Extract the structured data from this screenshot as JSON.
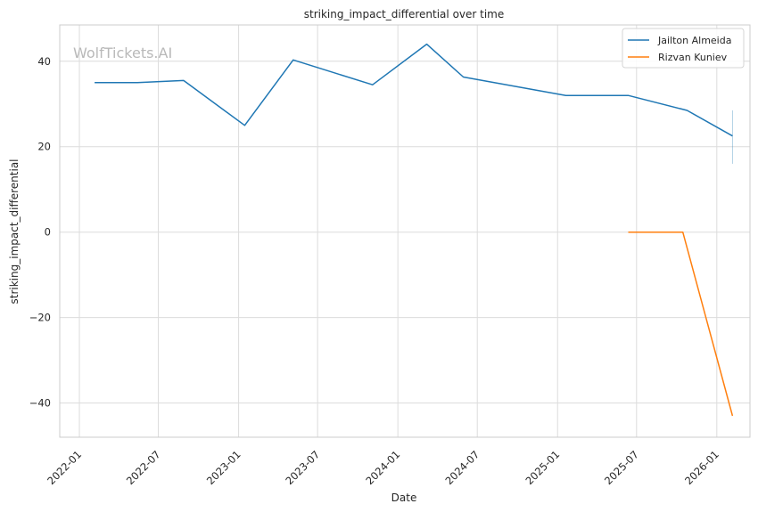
{
  "chart_data": {
    "type": "line",
    "title": "striking_impact_differential over time",
    "xlabel": "Date",
    "ylabel": "striking_impact_differential",
    "watermark": "WolfTickets.AI",
    "x_ticks": [
      "2022-01",
      "2022-07",
      "2023-01",
      "2023-07",
      "2024-01",
      "2024-07",
      "2025-01",
      "2025-07",
      "2026-01"
    ],
    "y_ticks": [
      -40,
      -20,
      0,
      20,
      40
    ],
    "xlim": [
      "2021-11-17",
      "2026-03-18"
    ],
    "ylim": [
      -48,
      48.5
    ],
    "grid": true,
    "legend_position": "top-right",
    "series": [
      {
        "name": "Jailton Almeida",
        "color": "#1f77b4",
        "points": [
          {
            "x": "2022-02-05",
            "y": 35
          },
          {
            "x": "2022-05-14",
            "y": 35
          },
          {
            "x": "2022-08-28",
            "y": 35.5
          },
          {
            "x": "2023-01-15",
            "y": 25
          },
          {
            "x": "2023-05-06",
            "y": 40.3
          },
          {
            "x": "2023-11-04",
            "y": 34.5
          },
          {
            "x": "2024-03-07",
            "y": 44
          },
          {
            "x": "2024-05-30",
            "y": 36.3
          },
          {
            "x": "2025-01-20",
            "y": 32
          },
          {
            "x": "2025-06-12",
            "y": 32
          },
          {
            "x": "2025-10-25",
            "y": 28.5
          },
          {
            "x": "2026-02-06",
            "y": 22.5
          }
        ],
        "error_bar": {
          "x": "2026-02-06",
          "low": 16,
          "high": 28.5
        }
      },
      {
        "name": "Rizvan Kuniev",
        "color": "#ff7f0e",
        "points": [
          {
            "x": "2025-06-12",
            "y": 0
          },
          {
            "x": "2025-10-15",
            "y": 0
          },
          {
            "x": "2026-02-06",
            "y": -43
          }
        ]
      }
    ]
  }
}
